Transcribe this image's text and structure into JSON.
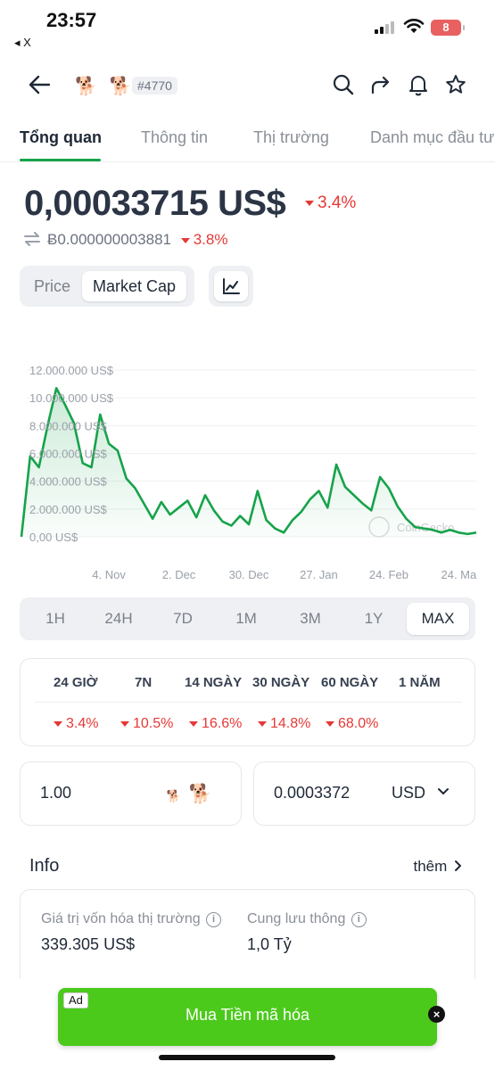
{
  "status_bar": {
    "time": "23:57",
    "back_app": "◂ X",
    "battery": "8",
    "battery_color": "#e96060"
  },
  "header": {
    "back_icon": "arrow-left-icon",
    "coin_icons": [
      "🐕",
      "🐕"
    ],
    "rank": "#4770",
    "actions": [
      "search-icon",
      "share-icon",
      "bell-icon",
      "star-icon"
    ]
  },
  "tabs": [
    {
      "label": "Tổng quan",
      "active": true
    },
    {
      "label": "Thông tin",
      "active": false
    },
    {
      "label": "Thị trường",
      "active": false
    },
    {
      "label": "Danh mục đầu tư",
      "active": false
    }
  ],
  "price": {
    "value": "0,00033715 US$",
    "change": "3.4%",
    "btc_value": "Ƀ0.000000003881",
    "btc_change": "3.8%",
    "down_color": "#e53935"
  },
  "toggle": {
    "price_label": "Price",
    "market_cap_label": "Market Cap",
    "selected": "Market Cap"
  },
  "chart_data": {
    "type": "area",
    "metric": "Market Cap",
    "y_ticks": [
      "12.000.000 US$",
      "10.000.000 US$",
      "8.000.000 US$",
      "6.000.000 US$",
      "4.000.000 US$",
      "2.000.000 US$",
      "0,00 US$"
    ],
    "y_tick_values": [
      12000000,
      10000000,
      8000000,
      6000000,
      4000000,
      2000000,
      0
    ],
    "ylim": [
      0,
      12000000
    ],
    "x_ticks": [
      "4. Nov",
      "2. Dec",
      "30. Dec",
      "27. Jan",
      "24. Feb",
      "24. Ma"
    ],
    "x_tick_index": [
      10,
      18,
      26,
      34,
      42,
      50
    ],
    "values": [
      0,
      5800000,
      5000000,
      8000000,
      10700000,
      9500000,
      8200000,
      5300000,
      5000000,
      8800000,
      6700000,
      6200000,
      4200000,
      3500000,
      2400000,
      1300000,
      2500000,
      1600000,
      2100000,
      2600000,
      1400000,
      3000000,
      1900000,
      1100000,
      800000,
      1500000,
      900000,
      3300000,
      1200000,
      600000,
      300000,
      1200000,
      1800000,
      2700000,
      3300000,
      2100000,
      5200000,
      3600000,
      3000000,
      2400000,
      1900000,
      4300000,
      3500000,
      2200000,
      1300000,
      700000,
      600000,
      500000,
      300000,
      500000,
      300000,
      200000,
      300000
    ],
    "watermark": "CoinGecko",
    "line_color": "#16a34a",
    "grid": true
  },
  "ranges": {
    "options": [
      "1H",
      "24H",
      "7D",
      "1M",
      "3M",
      "1Y",
      "MAX"
    ],
    "selected": "MAX"
  },
  "performance": {
    "headers": [
      "24 GIỜ",
      "7N",
      "14 NGÀY",
      "30 NGÀY",
      "60 NGÀY",
      "1 NĂM"
    ],
    "values": [
      "3.4%",
      "10.5%",
      "16.6%",
      "14.8%",
      "68.0%",
      ""
    ]
  },
  "converter": {
    "coin_amount": "1.00",
    "coin_icons": [
      "🐕",
      "🐕"
    ],
    "fiat_amount": "0.0003372",
    "fiat_unit": "USD"
  },
  "info": {
    "title": "Info",
    "more": "thêm",
    "market_cap_label": "Giá trị vốn hóa thị trường",
    "market_cap_value": "339.305 US$",
    "supply_label": "Cung lưu thông",
    "supply_value": "1,0 Tỷ"
  },
  "ad": {
    "tag": "Ad",
    "text": "Mua Tiền mã hóa",
    "color": "#4cca1c"
  }
}
